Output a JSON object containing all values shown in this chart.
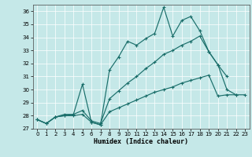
{
  "xlabel": "Humidex (Indice chaleur)",
  "xlim": [
    -0.5,
    23.5
  ],
  "ylim": [
    27,
    36.5
  ],
  "yticks": [
    27,
    28,
    29,
    30,
    31,
    32,
    33,
    34,
    35,
    36
  ],
  "xticks": [
    0,
    1,
    2,
    3,
    4,
    5,
    6,
    7,
    8,
    9,
    10,
    11,
    12,
    13,
    14,
    15,
    16,
    17,
    18,
    19,
    20,
    21,
    22,
    23
  ],
  "bg_color": "#c5e8e8",
  "line_color": "#1a6e6a",
  "grid_color": "#ffffff",
  "lines": [
    {
      "x": [
        0,
        1,
        2,
        3,
        4,
        5,
        6,
        7,
        8,
        9,
        10,
        11,
        12,
        13,
        14,
        15,
        16,
        17,
        18,
        19,
        20,
        21
      ],
      "y": [
        27.7,
        27.4,
        27.9,
        28.0,
        28.1,
        30.4,
        27.5,
        27.3,
        31.5,
        32.5,
        33.7,
        33.4,
        33.9,
        34.3,
        36.3,
        34.1,
        35.3,
        35.6,
        34.5,
        32.9,
        31.9,
        31.0
      ]
    },
    {
      "x": [
        0,
        1,
        2,
        3,
        4,
        5,
        6,
        7,
        8,
        9,
        10,
        11,
        12,
        13,
        14,
        15,
        16,
        17,
        18,
        19,
        20,
        21,
        22
      ],
      "y": [
        27.7,
        27.4,
        27.9,
        28.1,
        28.1,
        28.4,
        27.6,
        27.4,
        29.3,
        29.9,
        30.5,
        31.0,
        31.6,
        32.1,
        32.7,
        33.0,
        33.4,
        33.7,
        34.1,
        32.9,
        31.9,
        30.0,
        29.6
      ]
    },
    {
      "x": [
        0,
        1,
        2,
        3,
        4,
        5,
        6,
        7,
        8,
        9,
        10,
        11,
        12,
        13,
        14,
        15,
        16,
        17,
        18,
        19,
        20,
        21,
        22,
        23
      ],
      "y": [
        27.7,
        27.4,
        27.9,
        28.0,
        28.0,
        28.1,
        27.5,
        27.3,
        28.3,
        28.6,
        28.9,
        29.2,
        29.5,
        29.8,
        30.0,
        30.2,
        30.5,
        30.7,
        30.9,
        31.1,
        29.5,
        29.6,
        29.6,
        29.6
      ]
    }
  ]
}
